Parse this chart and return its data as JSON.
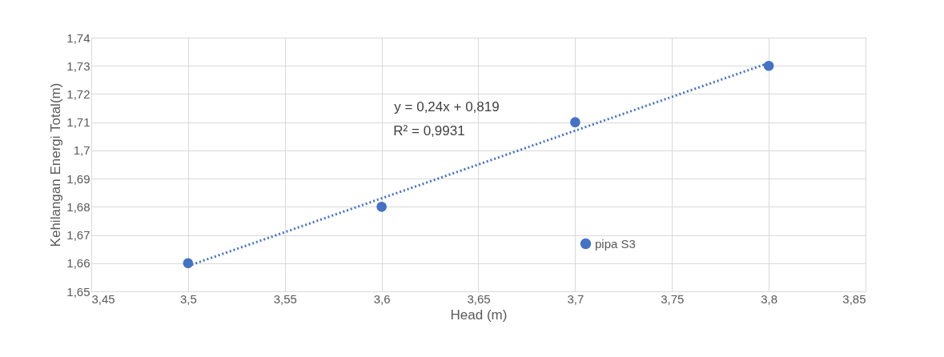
{
  "chart_data": {
    "type": "scatter",
    "xlabel": "Head (m)",
    "ylabel": "Kehilangan Energi Total(m)",
    "xlim": [
      3.45,
      3.85
    ],
    "ylim": [
      1.65,
      1.74
    ],
    "xticks": [
      {
        "value": 3.45,
        "label": "3,45"
      },
      {
        "value": 3.5,
        "label": "3,5"
      },
      {
        "value": 3.55,
        "label": "3,55"
      },
      {
        "value": 3.6,
        "label": "3,6"
      },
      {
        "value": 3.65,
        "label": "3,65"
      },
      {
        "value": 3.7,
        "label": "3,7"
      },
      {
        "value": 3.75,
        "label": "3,75"
      },
      {
        "value": 3.8,
        "label": "3,8"
      },
      {
        "value": 3.85,
        "label": "3,85"
      }
    ],
    "yticks": [
      {
        "value": 1.65,
        "label": "1,65"
      },
      {
        "value": 1.66,
        "label": "1,66"
      },
      {
        "value": 1.67,
        "label": "1,67"
      },
      {
        "value": 1.68,
        "label": "1,68"
      },
      {
        "value": 1.69,
        "label": "1,69"
      },
      {
        "value": 1.7,
        "label": "1,7"
      },
      {
        "value": 1.71,
        "label": "1,71"
      },
      {
        "value": 1.72,
        "label": "1,72"
      },
      {
        "value": 1.73,
        "label": "1,73"
      },
      {
        "value": 1.74,
        "label": "1,74"
      }
    ],
    "grid": true,
    "legend": "bottom right",
    "series": [
      {
        "name": "pipa S3",
        "marker": "circle",
        "color": "#4472c4",
        "x": [
          3.5,
          3.6,
          3.7,
          3.8
        ],
        "values": [
          1.66,
          1.68,
          1.71,
          1.73
        ]
      },
      {
        "type": "line",
        "marker": "none",
        "color": "#4472c4",
        "line_style": "dotted",
        "x": [
          3.5,
          3.8
        ],
        "values": [
          1.659,
          1.731
        ]
      }
    ],
    "annotations": [
      "y = 0,24x + 0,819",
      "R² = 0,9931"
    ]
  }
}
